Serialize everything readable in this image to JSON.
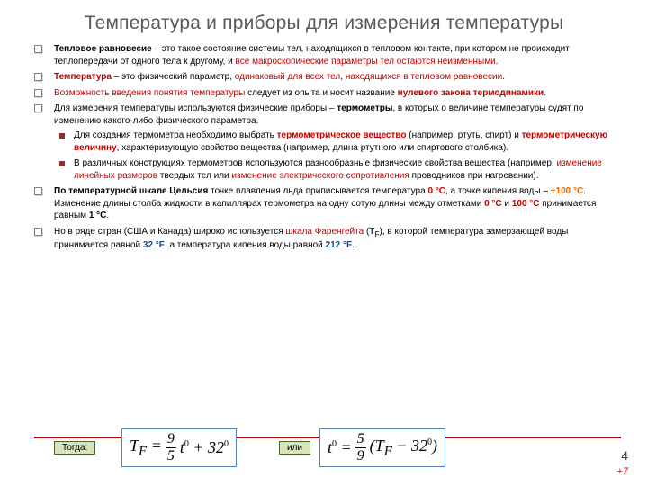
{
  "title": "Температура и приборы для измерения температуры",
  "bullets": [
    {
      "html": "<span class='b'>Тепловое равновесие</span> – это такое состояние системы тел, находящихся в тепловом контакте, при котором не происходит теплопередачи от одного тела к другому, и <span class='red'>все макроскопические параметры тел остаются неизменными</span>."
    },
    {
      "html": "<span class='b red'>Температура</span> – это физический параметр, <span class='red'>одинаковый для всех тел</span>, <span class='red'>находящихся в тепловом равновесии</span>."
    },
    {
      "html": "<span class='red'>Возможность введения понятия температуры</span> следует из опыта и носит название <span class='b red'>нулевого закона термодинамики</span>."
    },
    {
      "html": "Для измерения температуры используются физические приборы – <span class='b'>термометры</span>, в которых о величине температуры судят по изменению какого-либо физического параметра.",
      "sub": [
        {
          "html": "Для создания термометра необходимо выбрать <span class='b red'>термометрическое вещество</span> (например, ртуть, спирт) и <span class='b red'>термометрическую величину</span>, характеризующую свойство вещества (например, длина ртутного или спиртового столбика)."
        },
        {
          "html": "В различных конструкциях термометров используются разнообразные физические свойства вещества (например, <span class='red'>изменение линейных размеров</span> твердых тел или <span class='red'>изменение электрического сопротивления</span> проводников при нагревании)."
        }
      ]
    },
    {
      "html": "<span class='b'>По температурной шкале Цельсия</span> точке плавления льда приписывается температура <span class='red b'>0 °C</span>, а точке кипения воды – <span class='orange b'>+100 °C</span>. Изменение длины столба жидкости в капиллярах термометра на одну сотую длины между отметками <span class='red b'>0 °C</span> и <span class='red b'>100 °C</span> принимается равным <span class='b'>1 °C</span>."
    },
    {
      "html": "Но в ряде стран (США и Канада) широко используется <span class='red'>шкала Фаренгейта</span> (<span class='blue b'>T<sub>F</sub></span>), в которой температура замерзающей воды принимается равной <span class='blue b i'>32 °F</span>, а температура кипения воды равной <span class='blue b i'>212 °F</span>."
    }
  ],
  "btn_togda": "Тогда:",
  "btn_ili": "или",
  "eq1_lhs": "T<sub>F</sub>",
  "eq1_num": "9",
  "eq1_den": "5",
  "eq1_t": "t",
  "eq1_add": "32",
  "eq2_lhs": "t",
  "eq2_num": "5",
  "eq2_den": "9",
  "eq2_tf": "T<sub>F</sub>",
  "eq2_sub": "32",
  "page_number": "4",
  "plus7": "+7",
  "colors": {
    "title": "#595959",
    "red": "#c00000",
    "orange": "#e46c0a",
    "blue": "#1f497d",
    "rule": "#c00000",
    "btn_bg": "#d7e4bd",
    "btn_border": "#4f6228",
    "eq_border": "#4f81bd"
  }
}
